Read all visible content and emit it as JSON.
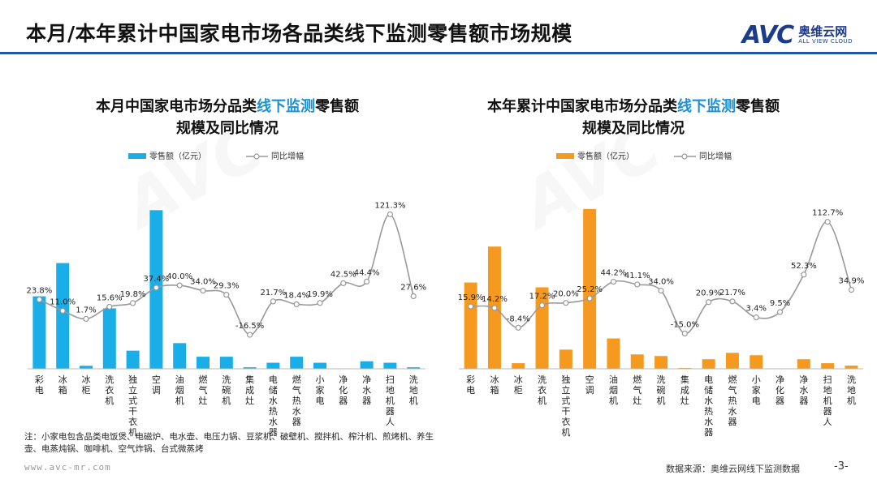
{
  "header": {
    "title": "本月/本年累计中国家电市场各品类线下监测零售额市场规模",
    "brand_logo": "AVC",
    "brand_cn": "奥维云网",
    "brand_en": "ALL VIEW CLOUD"
  },
  "footer": {
    "note": "注：小家电包含品类电饭煲、电磁炉、电水壶、电压力锅、豆浆机、破壁机、搅拌机、榨汁机、煎烤机、养生壶、电蒸炖锅、咖啡机、空气炸锅、台式微蒸烤",
    "site": "www.avc-mr.com",
    "source": "数据来源：奥维云网线下监测数据",
    "page": "-3-"
  },
  "colors": {
    "month_bar": "#1aaee8",
    "year_bar": "#f59a1f",
    "line": "#999999",
    "accent": "#1f55a8",
    "title_highlight": "#1a8fd9"
  },
  "chart_data": [
    {
      "type": "bar",
      "title_pre": "本月中国家电市场分品类",
      "title_hl": "线下监测",
      "title_post": "零售额",
      "title_line2": "规模及同比情况",
      "legend_bar": "零售额（亿元）",
      "legend_line": "同比增幅",
      "legend_position": "top",
      "categories": [
        "彩电",
        "冰箱",
        "冰柜",
        "洗衣机",
        "独立式干衣机",
        "空调",
        "油烟机",
        "燃气灶",
        "洗碗机",
        "集成灶",
        "电储水热水器",
        "燃气热水器",
        "小家电",
        "净化器",
        "净水器",
        "扫地机器人",
        "洗地机"
      ],
      "bar_values": [
        48,
        70,
        2,
        40,
        12,
        105,
        17,
        8,
        8,
        1,
        4,
        8,
        4,
        0,
        5,
        4,
        1
      ],
      "bar_max": 110,
      "growth_values": [
        23.8,
        11.0,
        1.7,
        15.6,
        19.8,
        37.4,
        40.0,
        34.0,
        29.3,
        -16.5,
        21.7,
        18.4,
        19.9,
        42.5,
        44.4,
        121.3,
        27.6
      ],
      "growth_labels": [
        "23.8%",
        "11.0%",
        "1.7%",
        "15.6%",
        "19.8%",
        "37.4%",
        "40.0%",
        "34.0%",
        "29.3%",
        "-16.5%",
        "21.7%",
        "18.4%",
        "19.9%",
        "42.5%",
        "44.4%",
        "121.3%",
        "27.6%"
      ],
      "growth_range": [
        -60,
        130
      ]
    },
    {
      "type": "bar",
      "title_pre": "本年累计中国家电市场分品类",
      "title_hl": "线下监测",
      "title_post": "零售额",
      "title_line2": "规模及同比情况",
      "legend_bar": "零售额（亿元）",
      "legend_line": "同比增幅",
      "legend_position": "top",
      "categories": [
        "彩电",
        "冰箱",
        "冰柜",
        "洗衣机",
        "独立式干衣机",
        "空调",
        "油烟机",
        "燃气灶",
        "洗碗机",
        "集成灶",
        "电储水热水器",
        "燃气热水器",
        "小家电",
        "净化器",
        "净水器",
        "扫地机器人",
        "洗地机"
      ],
      "bar_values": [
        540,
        765,
        35,
        510,
        120,
        1000,
        190,
        90,
        80,
        5,
        60,
        100,
        85,
        0,
        60,
        35,
        20
      ],
      "bar_max": 1040,
      "growth_values": [
        15.9,
        14.2,
        -8.4,
        17.2,
        20.0,
        25.2,
        44.2,
        41.1,
        34.0,
        -15.0,
        20.9,
        21.7,
        3.4,
        9.5,
        52.3,
        112.7,
        34.9
      ],
      "growth_labels": [
        "15.9%",
        "14.2%",
        "-8.4%",
        "17.2%",
        "20.0%",
        "25.2%",
        "44.2%",
        "41.1%",
        "34.0%",
        "-15.0%",
        "20.9%",
        "21.7%",
        "3.4%",
        "9.5%",
        "52.3%",
        "112.7%",
        "34.9%"
      ],
      "growth_range": [
        -60,
        130
      ]
    }
  ]
}
